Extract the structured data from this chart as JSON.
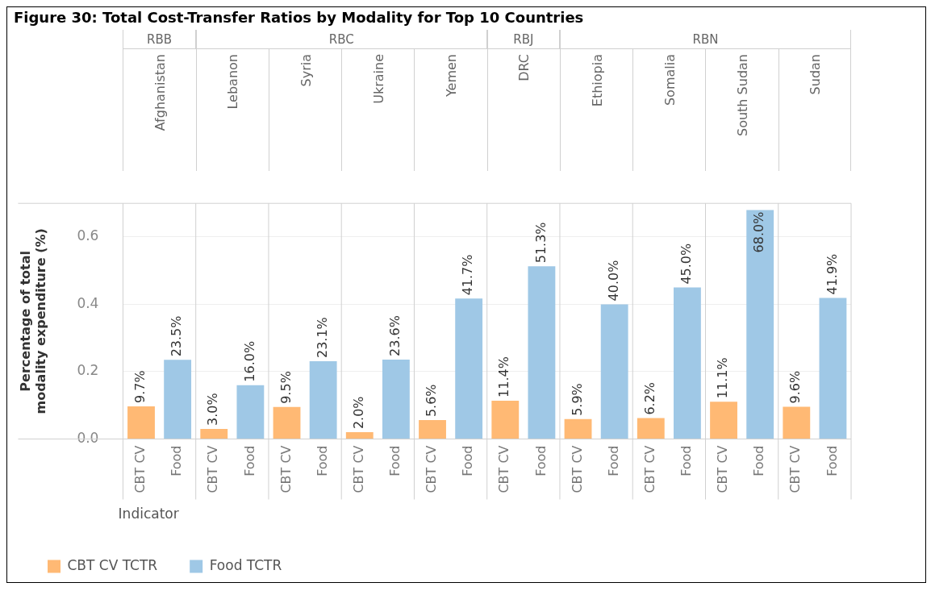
{
  "chart_data": {
    "type": "bar",
    "title": "Figure 30: Total Cost-Transfer Ratios by Modality for Top 10 Countries",
    "ylabel": "Percentage of total modality expenditure (%)",
    "legend_title": "Indicator",
    "legend": "bottom",
    "grid": "y",
    "categories": [
      "CBT CV",
      "Food",
      "CBT CV",
      "Food",
      "CBT CV",
      "Food",
      "CBT CV",
      "Food",
      "CBT CV",
      "Food",
      "CBT CV",
      "Food",
      "CBT CV",
      "Food",
      "CBT CV",
      "Food",
      "CBT CV",
      "Food",
      "CBT CV",
      "Food"
    ],
    "series": [
      {
        "name": "CBT CV TCTR",
        "color": "#ffb974",
        "values": [
          0.097,
          null,
          0.03,
          null,
          0.095,
          null,
          0.02,
          null,
          0.056,
          null,
          0.114,
          null,
          0.059,
          null,
          0.062,
          null,
          0.111,
          null,
          0.096,
          null
        ],
        "value_labels": [
          "9.7%",
          null,
          "3.0%",
          null,
          "9.5%",
          null,
          "2.0%",
          null,
          "5.6%",
          null,
          "11.4%",
          null,
          "5.9%",
          null,
          "6.2%",
          null,
          "11.1%",
          null,
          "9.6%",
          null
        ]
      },
      {
        "name": "Food TCTR",
        "color": "#9fc8e6",
        "values": [
          null,
          0.235,
          null,
          0.16,
          null,
          0.231,
          null,
          0.236,
          null,
          0.417,
          null,
          0.513,
          null,
          0.4,
          null,
          0.45,
          null,
          0.68,
          null,
          0.419
        ],
        "value_labels": [
          null,
          "23.5%",
          null,
          "16.0%",
          null,
          "23.1%",
          null,
          "23.6%",
          null,
          "41.7%",
          null,
          "51.3%",
          null,
          "40.0%",
          null,
          "45.0%",
          null,
          "68.0%",
          null,
          "41.9%"
        ]
      }
    ],
    "ylim": [
      0,
      0.7
    ],
    "yticks": [
      {
        "value": 0,
        "label": "0.0"
      },
      {
        "value": 0.2,
        "label": "0.2"
      },
      {
        "value": 0.4,
        "label": "0.4"
      },
      {
        "value": 0.6,
        "label": "0.6"
      }
    ],
    "annotations": [
      "RBB",
      "RBC",
      "RBJ",
      "RBN",
      "Afghanistan",
      "Lebanon",
      "Syria",
      "Ukraine",
      "Yemen",
      "DRC",
      "Ethiopia",
      "Somalia",
      "South Sudan",
      "Sudan"
    ]
  }
}
